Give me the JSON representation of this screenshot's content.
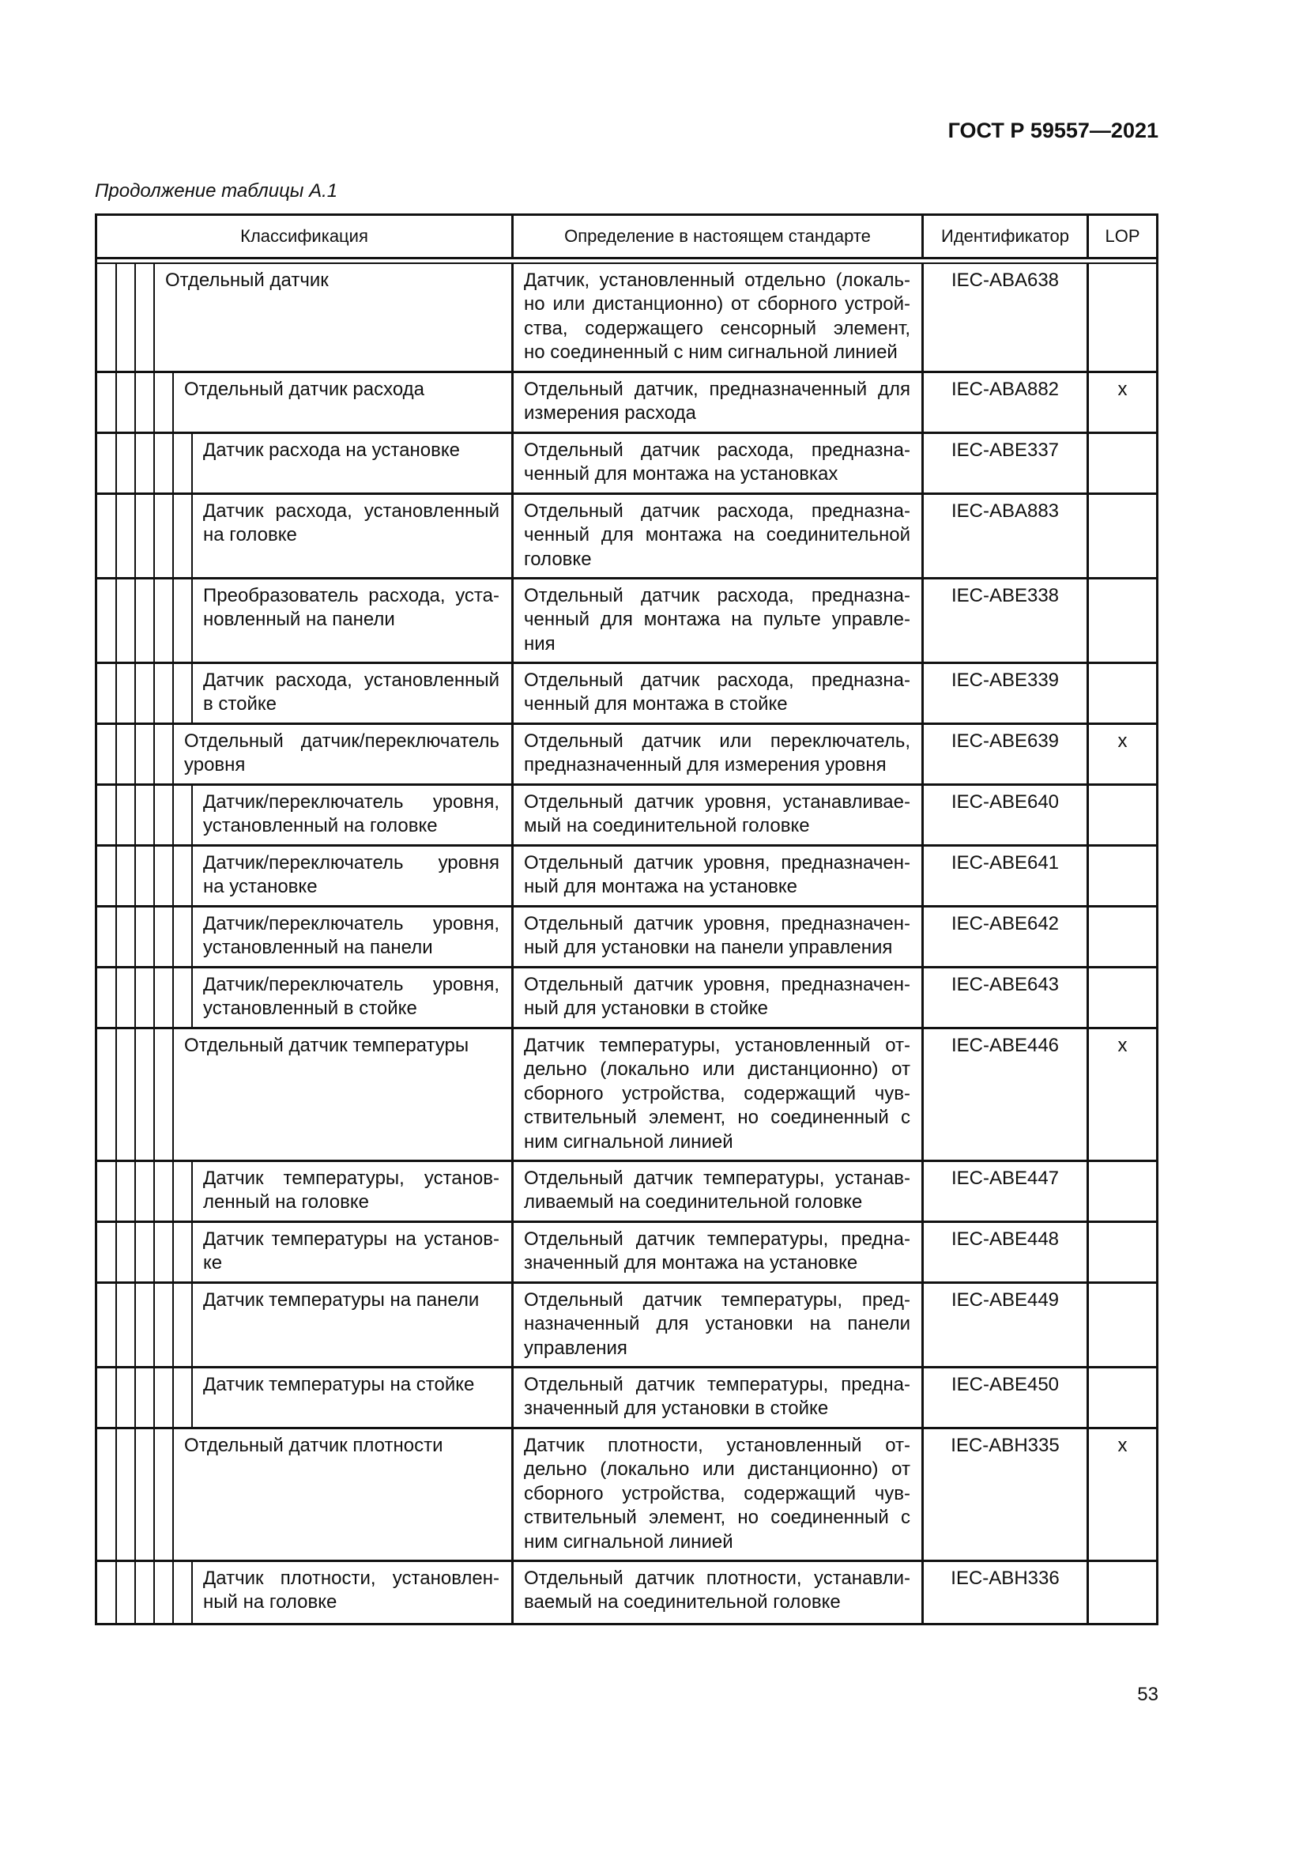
{
  "header": {
    "standard": "ГОСТ Р 59557—2021",
    "continuation": "Продолжение таблицы А.1"
  },
  "table": {
    "columns": [
      "Классификация",
      "Определение в настоящем стандарте",
      "Идентификатор",
      "LOP"
    ],
    "rows": [
      {
        "level": 1,
        "classification": [
          "Отдельный датчик"
        ],
        "definition": [
          "Датчик, установленный отдельно (локаль-",
          "но или дистанционно) от сборного устрой-",
          "ства, содержащего сенсорный элемент,",
          "но соединенный с ним сигнальной линией"
        ],
        "id": "IEC-ABA638",
        "lop": ""
      },
      {
        "level": 2,
        "classification": [
          "Отдельный датчик расхода"
        ],
        "definition": [
          "Отдельный датчик, предназначенный для",
          "измерения расхода"
        ],
        "id": "IEC-ABA882",
        "lop": "x"
      },
      {
        "level": 3,
        "classification": [
          "Датчик расхода на установке"
        ],
        "definition": [
          "Отдельный датчик расхода, предназна-",
          "ченный для монтажа на установках"
        ],
        "id": "IEC-ABE337",
        "lop": ""
      },
      {
        "level": 3,
        "classification": [
          "Датчик расхода, установленный",
          "на головке"
        ],
        "definition": [
          "Отдельный датчик расхода, предназна-",
          "ченный для монтажа на соединительной",
          "головке"
        ],
        "id": "IEC-ABA883",
        "lop": ""
      },
      {
        "level": 3,
        "classification": [
          "Преобразователь расхода, уста-",
          "новленный на панели"
        ],
        "definition": [
          "Отдельный датчик расхода, предназна-",
          "ченный для монтажа на пульте управле-",
          "ния"
        ],
        "id": "IEC-ABE338",
        "lop": ""
      },
      {
        "level": 3,
        "classification": [
          "Датчик расхода, установленный",
          "в стойке"
        ],
        "definition": [
          "Отдельный датчик расхода, предназна-",
          "ченный для монтажа в стойке"
        ],
        "id": "IEC-ABE339",
        "lop": ""
      },
      {
        "level": 2,
        "classification": [
          "Отдельный датчик/переключатель",
          "уровня"
        ],
        "definition": [
          "Отдельный датчик или переключатель,",
          "предназначенный для измерения уровня"
        ],
        "id": "IEC-ABE639",
        "lop": "x"
      },
      {
        "level": 3,
        "classification": [
          "Датчик/переключатель уровня,",
          "установленный на головке"
        ],
        "definition": [
          "Отдельный датчик уровня, устанавливае-",
          "мый на соединительной головке"
        ],
        "id": "IEC-ABE640",
        "lop": ""
      },
      {
        "level": 3,
        "classification": [
          "Датчик/переключатель уровня",
          "на установке"
        ],
        "definition": [
          "Отдельный датчик уровня, предназначен-",
          "ный для монтажа на установке"
        ],
        "id": "IEC-ABE641",
        "lop": ""
      },
      {
        "level": 3,
        "classification": [
          "Датчик/переключатель уровня,",
          "установленный на панели"
        ],
        "definition": [
          "Отдельный датчик уровня, предназначен-",
          "ный для установки на панели управления"
        ],
        "id": "IEC-ABE642",
        "lop": ""
      },
      {
        "level": 3,
        "classification": [
          "Датчик/переключатель уровня,",
          "установленный в стойке"
        ],
        "definition": [
          "Отдельный датчик уровня, предназначен-",
          "ный для установки в стойке"
        ],
        "id": "IEC-ABE643",
        "lop": ""
      },
      {
        "level": 2,
        "classification": [
          "Отдельный датчик температуры"
        ],
        "definition": [
          "Датчик температуры, установленный от-",
          "дельно (локально или дистанционно) от",
          "сборного устройства, содержащий чув-",
          "ствительный элемент, но соединенный с",
          "ним сигнальной линией"
        ],
        "id": "IEC-ABE446",
        "lop": "x"
      },
      {
        "level": 3,
        "classification": [
          "Датчик температуры, установ-",
          "ленный на головке"
        ],
        "definition": [
          "Отдельный датчик температуры, устанав-",
          "ливаемый на соединительной головке"
        ],
        "id": "IEC-ABE447",
        "lop": ""
      },
      {
        "level": 3,
        "classification": [
          "Датчик температуры на установ-",
          "ке"
        ],
        "definition": [
          "Отдельный датчик температуры, предна-",
          "значенный для монтажа на установке"
        ],
        "id": "IEC-ABE448",
        "lop": ""
      },
      {
        "level": 3,
        "classification": [
          "Датчик температуры на панели"
        ],
        "definition": [
          "Отдельный датчик температуры, пред-",
          "назначенный для установки на панели",
          "управления"
        ],
        "id": "IEC-ABE449",
        "lop": ""
      },
      {
        "level": 3,
        "classification": [
          "Датчик температуры на стойке"
        ],
        "definition": [
          "Отдельный датчик температуры, предна-",
          "значенный для установки в стойке"
        ],
        "id": "IEC-ABE450",
        "lop": ""
      },
      {
        "level": 2,
        "classification": [
          "Отдельный датчик плотности"
        ],
        "definition": [
          "Датчик плотности, установленный от-",
          "дельно (локально или дистанционно) от",
          "сборного устройства, содержащий чув-",
          "ствительный элемент, но соединенный с",
          "ним сигнальной линией"
        ],
        "id": "IEC-ABH335",
        "lop": "x"
      },
      {
        "level": 3,
        "classification": [
          "Датчик плотности, установлен-",
          "ный на головке"
        ],
        "definition": [
          "Отдельный датчик плотности, устанавли-",
          "ваемый на соединительной головке"
        ],
        "id": "IEC-ABH336",
        "lop": ""
      }
    ]
  },
  "footer": {
    "page_number": "53"
  }
}
